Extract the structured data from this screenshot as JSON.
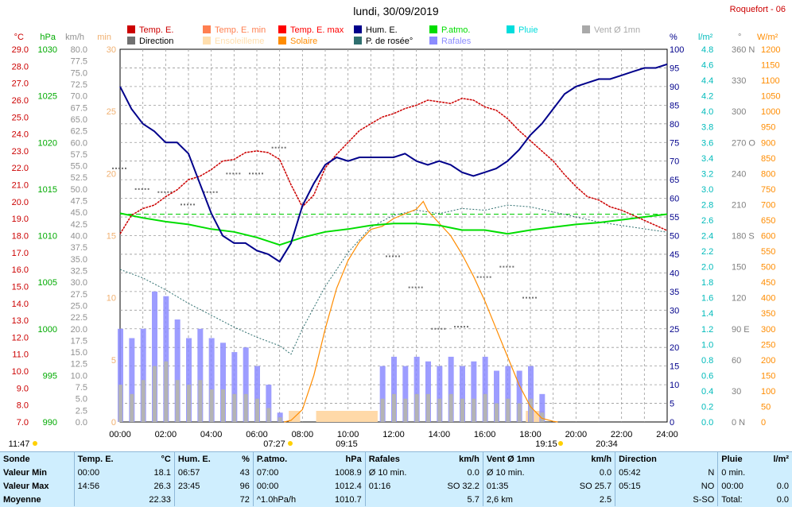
{
  "title": "lundi, 30/09/2019",
  "station": "Roquefort - 06",
  "legend": [
    {
      "label": "Temp. E.",
      "color": "#cc0000"
    },
    {
      "label": "Temp. E. min",
      "color": "#ff7f50"
    },
    {
      "label": "Temp. E. max",
      "color": "#ff0000"
    },
    {
      "label": "Hum. E.",
      "color": "#00008b"
    },
    {
      "label": "P.atmo.",
      "color": "#00dd00"
    },
    {
      "label": "Pluie",
      "color": "#00dddd"
    },
    {
      "label": "Vent Ø 1mn",
      "color": "#a9a9a9"
    },
    {
      "label": "Direction",
      "color": "#707070"
    },
    {
      "label": "Ensoleilleme",
      "color": "#ffdead"
    },
    {
      "label": "Solaire",
      "color": "#ff8c00"
    },
    {
      "label": "P. de rosée°",
      "color": "#2f6f6f"
    },
    {
      "label": "Rafales",
      "color": "#8c8cff"
    }
  ],
  "axis_units": {
    "temp": "°C",
    "press": "hPa",
    "wind": "km/h",
    "min": "min",
    "hum": "%",
    "rain": "l/m²",
    "dir": "°",
    "solar": "W/m²"
  },
  "axis_ticks": {
    "temp": [
      "29.0",
      "28.0",
      "27.0",
      "26.0",
      "25.0",
      "24.0",
      "23.0",
      "22.0",
      "21.0",
      "20.0",
      "19.0",
      "18.0",
      "17.0",
      "16.0",
      "15.0",
      "14.0",
      "13.0",
      "12.0",
      "11.0",
      "10.0",
      "9.0",
      "8.0",
      "7.0"
    ],
    "press": [
      "1030",
      "1025",
      "1020",
      "1015",
      "1010",
      "1005",
      "1000",
      "995",
      "990"
    ],
    "wind": [
      "80.0",
      "77.5",
      "75.0",
      "72.5",
      "70.0",
      "67.5",
      "65.0",
      "62.5",
      "60.0",
      "57.5",
      "55.0",
      "52.5",
      "50.0",
      "47.5",
      "45.0",
      "42.5",
      "40.0",
      "37.5",
      "35.0",
      "32.5",
      "30.0",
      "27.5",
      "25.0",
      "22.5",
      "20.0",
      "17.5",
      "15.0",
      "12.5",
      "10.0",
      "7.5",
      "5.0",
      "2.5",
      "0.0"
    ],
    "min": [
      "30",
      "25",
      "20",
      "15",
      "10",
      "5",
      "0"
    ],
    "hum": [
      "100",
      "95",
      "90",
      "85",
      "80",
      "75",
      "70",
      "65",
      "60",
      "55",
      "50",
      "45",
      "40",
      "35",
      "30",
      "25",
      "20",
      "15",
      "10",
      "5",
      "0"
    ],
    "rain": [
      "4.8",
      "4.6",
      "4.4",
      "4.2",
      "4.0",
      "3.8",
      "3.6",
      "3.4",
      "3.2",
      "3.0",
      "2.8",
      "2.6",
      "2.4",
      "2.2",
      "2.0",
      "1.8",
      "1.6",
      "1.4",
      "1.2",
      "1.0",
      "0.8",
      "0.6",
      "0.4",
      "0.2",
      "0.0"
    ],
    "dir": [
      "360 N",
      "330",
      "300",
      "270 O",
      "240",
      "210",
      "180 S",
      "150",
      "120",
      "90 E",
      "60",
      "30",
      "0 N"
    ],
    "solar": [
      "1200",
      "1150",
      "1100",
      "1050",
      "1000",
      "950",
      "900",
      "850",
      "800",
      "750",
      "700",
      "650",
      "600",
      "550",
      "500",
      "450",
      "400",
      "350",
      "300",
      "250",
      "200",
      "150",
      "100",
      "50",
      "0"
    ],
    "time": [
      "00:00",
      "02:00",
      "04:00",
      "06:00",
      "08:00",
      "10:00",
      "12:00",
      "14:00",
      "16:00",
      "18:00",
      "20:00",
      "22:00",
      "24:00"
    ]
  },
  "time_marks": {
    "moonset": "11:47",
    "sunrise": "07:27",
    "solar_start": "09:15",
    "sunset": "19:15",
    "moonrise": "20:34"
  },
  "chart_data": {
    "type": "line",
    "title": "lundi, 30/09/2019",
    "x_unit": "hours",
    "xlim": [
      0,
      24
    ],
    "series": [
      {
        "name": "Temp. E.",
        "axis": "temp",
        "ylim": [
          7,
          29
        ],
        "x": [
          0,
          0.5,
          1,
          1.5,
          2,
          2.5,
          3,
          3.5,
          4,
          4.5,
          5,
          5.5,
          6,
          6.5,
          7,
          7.5,
          8,
          8.5,
          9,
          9.5,
          10,
          10.5,
          11,
          11.5,
          12,
          12.5,
          13,
          13.5,
          14,
          14.5,
          15,
          15.5,
          16,
          16.5,
          17,
          17.5,
          18,
          18.5,
          19,
          19.5,
          20,
          20.5,
          21,
          21.5,
          22,
          22.5,
          23,
          23.5,
          24
        ],
        "values": [
          18.1,
          19.2,
          19.6,
          19.8,
          20.3,
          20.7,
          21.3,
          21.5,
          21.9,
          22.4,
          22.5,
          22.9,
          23.0,
          22.9,
          22.5,
          21.0,
          19.7,
          20.4,
          22.0,
          22.8,
          23.5,
          24.2,
          24.6,
          25.0,
          25.2,
          25.5,
          25.7,
          26.0,
          25.9,
          25.8,
          26.1,
          26.0,
          25.6,
          25.4,
          24.9,
          24.2,
          23.6,
          23.0,
          22.4,
          21.6,
          20.9,
          20.3,
          20.1,
          19.7,
          19.5,
          19.2,
          18.9,
          18.6,
          18.3
        ]
      },
      {
        "name": "Hum. E.",
        "axis": "hum",
        "ylim": [
          0,
          100
        ],
        "x": [
          0,
          0.5,
          1,
          1.5,
          2,
          2.5,
          3,
          3.5,
          4,
          4.5,
          5,
          5.5,
          6,
          6.5,
          7,
          7.5,
          8,
          8.5,
          9,
          9.5,
          10,
          10.5,
          11,
          11.5,
          12,
          12.5,
          13,
          13.5,
          14,
          14.5,
          15,
          15.5,
          16,
          16.5,
          17,
          17.5,
          18,
          18.5,
          19,
          19.5,
          20,
          20.5,
          21,
          21.5,
          22,
          22.5,
          23,
          23.5,
          24
        ],
        "values": [
          90,
          84,
          80,
          78,
          75,
          75,
          72,
          64,
          56,
          50,
          48,
          48,
          46,
          45,
          43,
          48,
          58,
          64,
          69,
          71,
          70,
          71,
          71,
          71,
          71,
          72,
          70,
          69,
          70,
          69,
          67,
          66,
          67,
          68,
          70,
          73,
          77,
          80,
          84,
          88,
          90,
          91,
          92,
          92,
          93,
          94,
          95,
          95,
          96
        ]
      },
      {
        "name": "P.atmo.",
        "axis": "press",
        "ylim": [
          990,
          1030
        ],
        "x": [
          0,
          1,
          2,
          3,
          4,
          5,
          6,
          7,
          8,
          9,
          10,
          11,
          12,
          13,
          14,
          15,
          16,
          17,
          18,
          19,
          20,
          21,
          22,
          23,
          24
        ],
        "values": [
          1012.4,
          1011.9,
          1011.5,
          1011.2,
          1010.7,
          1010.4,
          1009.8,
          1009.0,
          1009.8,
          1010.4,
          1010.7,
          1011.1,
          1011.3,
          1011.3,
          1011.1,
          1010.6,
          1010.6,
          1010.2,
          1010.6,
          1010.9,
          1011.2,
          1011.4,
          1011.7,
          1012.0,
          1012.3
        ]
      },
      {
        "name": "P. de rosée°",
        "axis": "temp",
        "ylim": [
          7,
          29
        ],
        "x": [
          0,
          1,
          2,
          3,
          4,
          5,
          6,
          7,
          7.5,
          8,
          9,
          10,
          11,
          12,
          13,
          14,
          15,
          16,
          17,
          18,
          19,
          20,
          21,
          22,
          23,
          24
        ],
        "values": [
          16.0,
          15.5,
          14.8,
          14.0,
          13.3,
          12.6,
          12.0,
          11.5,
          11.0,
          12.5,
          15.0,
          17.0,
          18.5,
          19.2,
          19.5,
          19.3,
          19.6,
          19.5,
          19.8,
          19.7,
          19.4,
          19.1,
          18.8,
          18.6,
          18.4,
          18.2
        ]
      },
      {
        "name": "Solaire",
        "axis": "solar",
        "ylim": [
          0,
          1200
        ],
        "x": [
          7.2,
          7.5,
          8,
          8.5,
          9,
          9.5,
          10,
          10.5,
          11,
          11.5,
          12,
          12.5,
          13,
          13.3,
          13.5,
          14,
          14.5,
          15,
          15.5,
          16,
          16.5,
          17,
          17.5,
          18,
          18.5,
          19,
          19.2
        ],
        "values": [
          0,
          5,
          40,
          150,
          300,
          430,
          520,
          580,
          620,
          630,
          655,
          670,
          685,
          710,
          680,
          640,
          600,
          540,
          470,
          390,
          300,
          210,
          120,
          50,
          12,
          2,
          0
        ]
      },
      {
        "name": "Rafales",
        "axis": "wind",
        "x": [
          0,
          0.5,
          1,
          1.5,
          2,
          2.5,
          3,
          3.5,
          4,
          4.5,
          5,
          5.5,
          6,
          6.5,
          7,
          7.5,
          8,
          9,
          10,
          11,
          11.5,
          12,
          12.5,
          13,
          13.5,
          14,
          14.5,
          15,
          15.5,
          16,
          16.5,
          17,
          17.5,
          18,
          18.5,
          19,
          20,
          21,
          22,
          23,
          24
        ],
        "values": [
          20,
          18,
          20,
          28,
          27,
          22,
          18,
          20,
          18,
          17,
          15,
          16,
          12,
          8,
          2,
          0,
          0,
          0,
          0,
          0,
          12,
          14,
          12,
          14,
          13,
          12,
          14,
          12,
          13,
          14,
          11,
          12,
          11,
          12,
          6,
          0,
          0,
          0,
          0,
          0,
          0
        ]
      },
      {
        "name": "Vent Ø 1mn",
        "axis": "wind",
        "x": [
          0,
          0.5,
          1,
          1.5,
          2,
          2.5,
          3,
          3.5,
          4,
          4.5,
          5,
          5.5,
          6,
          6.5,
          7,
          7.5,
          8,
          9,
          10,
          11,
          11.5,
          12,
          12.5,
          13,
          13.5,
          14,
          14.5,
          15,
          15.5,
          16,
          16.5,
          17,
          17.5,
          18,
          18.5,
          19,
          20,
          21,
          22,
          23,
          24
        ],
        "values": [
          8,
          6,
          9,
          12,
          13,
          9,
          8,
          9,
          7,
          7,
          6,
          6,
          5,
          3,
          1,
          0,
          0,
          0,
          0,
          0,
          5,
          6,
          5,
          6,
          6,
          5,
          6,
          5,
          5,
          6,
          4,
          5,
          4,
          5,
          2,
          0,
          0,
          0,
          0,
          0,
          0
        ]
      },
      {
        "name": "Direction",
        "axis": "dir",
        "ylim": [
          0,
          360
        ],
        "x": [
          0,
          1,
          2,
          3,
          4,
          5,
          6,
          7,
          12,
          13,
          14,
          15,
          16,
          17,
          18
        ],
        "values": [
          245,
          225,
          222,
          210,
          222,
          240,
          240,
          265,
          160,
          130,
          90,
          92,
          140,
          150,
          120
        ]
      }
    ],
    "sunshine_blocks": [
      [
        7.4,
        7.9
      ],
      [
        8.6,
        11.3
      ],
      [
        17.8,
        18.6
      ]
    ],
    "hline_pressure": 1012.3
  },
  "stats": {
    "headers": [
      "Sonde",
      "Temp. E.",
      "°C",
      "Hum. E.",
      "%",
      "P.atmo.",
      "hPa",
      "Rafales",
      "km/h",
      "Vent Ø 1mn",
      "km/h",
      "Direction",
      "",
      "Pluie",
      "l/m²"
    ],
    "rows": [
      [
        "Valeur Min",
        "00:00",
        "18.1",
        "06:57",
        "43",
        "07:00",
        "1008.9",
        "Ø 10 min.",
        "0.0",
        "Ø 10 min.",
        "0.0",
        "05:42",
        "N",
        "0 min.",
        ""
      ],
      [
        "Valeur Max",
        "14:56",
        "26.3",
        "23:45",
        "96",
        "00:00",
        "1012.4",
        "01:16",
        "SO 32.2",
        "01:35",
        "SO 25.7",
        "05:15",
        "NO",
        "00:00",
        "0.0"
      ],
      [
        "Moyenne",
        "",
        "22.33",
        "",
        "72",
        "^1.0hPa/h",
        "1010.7",
        "",
        "5.7",
        "2,6 km",
        "2.5",
        "",
        "S-SO",
        "Total:",
        "0.0"
      ]
    ]
  }
}
